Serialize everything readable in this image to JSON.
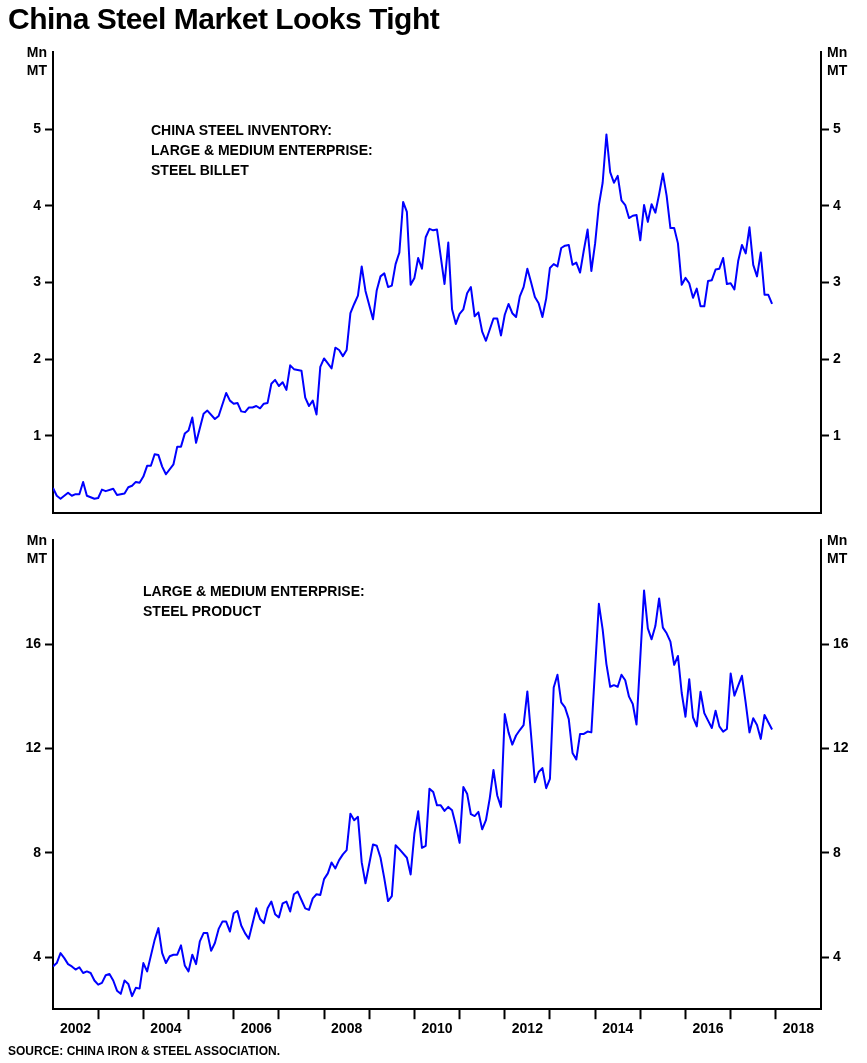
{
  "chart_data": [
    {
      "type": "line",
      "title": "China Steel Market Looks Tight",
      "ylabel": "Mn MT",
      "y2label": "Mn MT",
      "annotations": [
        "CHINA STEEL INVENTORY:\nLARGE & MEDIUM ENTERPRISE:\nSTEEL BILLET"
      ],
      "xlim": [
        "2002-01",
        "2019-01"
      ],
      "ylim": [
        0,
        6
      ],
      "yticks": [
        1,
        2,
        3,
        4,
        5
      ],
      "y2lim": [
        0,
        6
      ],
      "y2ticks": [
        1,
        2,
        3,
        4,
        5
      ],
      "tick_labels": "y",
      "grid": false,
      "legend": false,
      "marker": "none",
      "line_style": "solid",
      "series": [
        {
          "color": "#0000ff",
          "x": [
            "2002-01",
            "2002-02",
            "2002-03",
            "2002-05",
            "2002-06",
            "2002-07",
            "2002-08",
            "2002-09",
            "2002-10",
            "2002-12",
            "2003-01",
            "2003-02",
            "2003-03",
            "2003-05",
            "2003-06",
            "2003-08",
            "2003-09",
            "2003-10",
            "2003-11",
            "2003-12",
            "2004-01",
            "2004-02",
            "2004-03",
            "2004-04",
            "2004-05",
            "2004-06",
            "2004-07",
            "2004-09",
            "2004-10",
            "2004-11",
            "2004-12",
            "2005-01",
            "2005-02",
            "2005-03",
            "2005-05",
            "2005-06",
            "2005-08",
            "2005-09",
            "2005-11",
            "2005-12",
            "2006-01",
            "2006-02",
            "2006-03",
            "2006-04",
            "2006-05",
            "2006-06",
            "2006-07",
            "2006-08",
            "2006-09",
            "2006-10",
            "2006-11",
            "2006-12",
            "2007-01",
            "2007-02",
            "2007-03",
            "2007-04",
            "2007-05",
            "2007-07",
            "2007-08",
            "2007-09",
            "2007-10",
            "2007-11",
            "2007-12",
            "2008-01",
            "2008-03",
            "2008-04",
            "2008-05",
            "2008-06",
            "2008-07",
            "2008-08",
            "2008-09",
            "2008-10",
            "2008-11",
            "2008-12",
            "2009-02",
            "2009-03",
            "2009-04",
            "2009-05",
            "2009-06",
            "2009-07",
            "2009-08",
            "2009-09",
            "2009-10",
            "2009-11",
            "2009-12",
            "2010-01",
            "2010-02",
            "2010-03",
            "2010-04",
            "2010-05",
            "2010-06",
            "2010-07",
            "2010-09",
            "2010-10",
            "2010-11",
            "2010-12",
            "2011-01",
            "2011-02",
            "2011-03",
            "2011-04",
            "2011-05",
            "2011-06",
            "2011-07",
            "2011-08",
            "2011-10",
            "2011-11",
            "2011-12",
            "2012-01",
            "2012-02",
            "2012-03",
            "2012-04",
            "2012-05",
            "2012-06",
            "2012-07",
            "2012-08",
            "2012-09",
            "2012-10",
            "2012-11",
            "2012-12",
            "2013-01",
            "2013-02",
            "2013-03",
            "2013-04",
            "2013-05",
            "2013-06",
            "2013-07",
            "2013-08",
            "2013-09",
            "2013-10",
            "2013-11",
            "2013-12",
            "2014-01",
            "2014-02",
            "2014-03",
            "2014-04",
            "2014-05",
            "2014-06",
            "2014-07",
            "2014-08",
            "2014-09",
            "2014-10",
            "2014-11",
            "2014-12",
            "2015-01",
            "2015-02",
            "2015-03",
            "2015-04",
            "2015-05",
            "2015-06",
            "2015-07",
            "2015-08",
            "2015-09",
            "2015-10",
            "2015-11",
            "2015-12",
            "2016-01",
            "2016-02",
            "2016-03",
            "2016-04",
            "2016-05",
            "2016-06",
            "2016-07",
            "2016-08",
            "2016-09",
            "2016-10",
            "2016-11",
            "2016-12",
            "2017-01",
            "2017-02",
            "2017-03",
            "2017-04",
            "2017-05",
            "2017-06",
            "2017-07",
            "2017-08",
            "2017-09",
            "2017-10",
            "2017-11",
            "2017-12"
          ],
          "values": [
            0.32,
            0.22,
            0.18,
            0.26,
            0.22,
            0.24,
            0.24,
            0.4,
            0.22,
            0.18,
            0.19,
            0.3,
            0.28,
            0.31,
            0.23,
            0.25,
            0.33,
            0.35,
            0.4,
            0.39,
            0.47,
            0.61,
            0.61,
            0.76,
            0.75,
            0.6,
            0.5,
            0.63,
            0.86,
            0.86,
            1.03,
            1.07,
            1.24,
            0.91,
            1.29,
            1.33,
            1.22,
            1.26,
            1.56,
            1.46,
            1.42,
            1.43,
            1.32,
            1.31,
            1.37,
            1.37,
            1.39,
            1.36,
            1.42,
            1.43,
            1.68,
            1.73,
            1.65,
            1.7,
            1.6,
            1.92,
            1.87,
            1.85,
            1.5,
            1.39,
            1.46,
            1.28,
            1.9,
            2.01,
            1.88,
            2.15,
            2.12,
            2.04,
            2.12,
            2.6,
            2.72,
            2.83,
            3.21,
            2.89,
            2.52,
            2.9,
            3.08,
            3.12,
            2.94,
            2.96,
            3.24,
            3.39,
            4.05,
            3.92,
            2.97,
            3.06,
            3.32,
            3.18,
            3.59,
            3.7,
            3.68,
            3.69,
            2.98,
            3.52,
            2.65,
            2.46,
            2.59,
            2.65,
            2.86,
            2.94,
            2.56,
            2.61,
            2.36,
            2.24,
            2.53,
            2.53,
            2.31,
            2.58,
            2.72,
            2.6,
            2.55,
            2.82,
            2.94,
            3.18,
            3.0,
            2.81,
            2.73,
            2.55,
            2.79,
            3.19,
            3.24,
            3.21,
            3.45,
            3.48,
            3.49,
            3.23,
            3.26,
            3.13,
            3.42,
            3.69,
            3.15,
            3.51,
            4.01,
            4.3,
            4.93,
            4.44,
            4.3,
            4.39,
            4.07,
            4.01,
            3.84,
            3.87,
            3.88,
            3.55,
            4.01,
            3.79,
            4.02,
            3.91,
            4.15,
            4.42,
            4.13,
            3.71,
            3.71,
            3.51,
            2.97,
            3.06,
            2.99,
            2.8,
            2.92,
            2.69,
            2.69,
            3.02,
            3.03,
            3.17,
            3.18,
            3.32,
            2.98,
            2.99,
            2.91,
            3.28,
            3.49,
            3.38,
            3.72,
            3.23,
            3.08,
            3.39,
            2.84,
            2.84,
            2.72
          ]
        }
      ]
    },
    {
      "type": "line",
      "ylabel": "Mn MT",
      "y2label": "Mn MT",
      "annotations": [
        "LARGE & MEDIUM ENTERPRISE:\nSTEEL PRODUCT",
        "SOURCE: CHINA IRON & STEEL ASSOCIATION."
      ],
      "xlim": [
        "2002-01",
        "2019-01"
      ],
      "xticks": [
        {
          "value": "2002-07",
          "label": "2002"
        },
        {
          "value": "2003-01",
          "label": null
        },
        {
          "value": "2004-01",
          "label": null
        },
        {
          "value": "2004-07",
          "label": "2004"
        },
        {
          "value": "2005-01",
          "label": null
        },
        {
          "value": "2006-01",
          "label": null
        },
        {
          "value": "2006-07",
          "label": "2006"
        },
        {
          "value": "2007-01",
          "label": null
        },
        {
          "value": "2008-01",
          "label": null
        },
        {
          "value": "2008-07",
          "label": "2008"
        },
        {
          "value": "2009-01",
          "label": null
        },
        {
          "value": "2010-01",
          "label": null
        },
        {
          "value": "2010-07",
          "label": "2010"
        },
        {
          "value": "2011-01",
          "label": null
        },
        {
          "value": "2012-01",
          "label": null
        },
        {
          "value": "2012-07",
          "label": "2012"
        },
        {
          "value": "2013-01",
          "label": null
        },
        {
          "value": "2014-01",
          "label": null
        },
        {
          "value": "2014-07",
          "label": "2014"
        },
        {
          "value": "2015-01",
          "label": null
        },
        {
          "value": "2016-01",
          "label": null
        },
        {
          "value": "2016-07",
          "label": "2016"
        },
        {
          "value": "2017-01",
          "label": null
        },
        {
          "value": "2018-01",
          "label": null
        },
        {
          "value": "2018-07",
          "label": "2018"
        }
      ],
      "ylim": [
        2,
        20
      ],
      "yticks": [
        4,
        8,
        12,
        16
      ],
      "y2lim": [
        2,
        20
      ],
      "y2ticks": [
        4,
        8,
        12,
        16
      ],
      "grid": false,
      "legend": false,
      "marker": "none",
      "line_style": "solid",
      "series": [
        {
          "color": "#0000ff",
          "x": [
            "2002-01",
            "2002-02",
            "2002-03",
            "2002-04",
            "2002-05",
            "2002-06",
            "2002-07",
            "2002-08",
            "2002-09",
            "2002-10",
            "2002-11",
            "2002-12",
            "2003-01",
            "2003-02",
            "2003-03",
            "2003-04",
            "2003-05",
            "2003-06",
            "2003-07",
            "2003-08",
            "2003-09",
            "2003-10",
            "2003-11",
            "2003-12",
            "2004-01",
            "2004-02",
            "2004-04",
            "2004-05",
            "2004-06",
            "2004-07",
            "2004-08",
            "2004-09",
            "2004-10",
            "2004-11",
            "2004-12",
            "2005-01",
            "2005-02",
            "2005-03",
            "2005-04",
            "2005-05",
            "2005-06",
            "2005-07",
            "2005-08",
            "2005-09",
            "2005-10",
            "2005-11",
            "2005-12",
            "2006-01",
            "2006-02",
            "2006-03",
            "2006-04",
            "2006-05",
            "2006-07",
            "2006-08",
            "2006-09",
            "2006-10",
            "2006-11",
            "2006-12",
            "2007-01",
            "2007-02",
            "2007-03",
            "2007-04",
            "2007-05",
            "2007-06",
            "2007-07",
            "2007-08",
            "2007-09",
            "2007-10",
            "2007-11",
            "2007-12",
            "2008-01",
            "2008-02",
            "2008-03",
            "2008-04",
            "2008-05",
            "2008-06",
            "2008-07",
            "2008-08",
            "2008-09",
            "2008-10",
            "2008-11",
            "2008-12",
            "2009-02",
            "2009-03",
            "2009-04",
            "2009-05",
            "2009-06",
            "2009-07",
            "2009-08",
            "2009-09",
            "2009-11",
            "2009-12",
            "2010-01",
            "2010-02",
            "2010-03",
            "2010-04",
            "2010-05",
            "2010-06",
            "2010-07",
            "2010-08",
            "2010-09",
            "2010-10",
            "2010-11",
            "2010-12",
            "2011-01",
            "2011-02",
            "2011-03",
            "2011-04",
            "2011-05",
            "2011-06",
            "2011-07",
            "2011-08",
            "2011-09",
            "2011-10",
            "2011-11",
            "2011-12",
            "2012-01",
            "2012-02",
            "2012-03",
            "2012-04",
            "2012-05",
            "2012-06",
            "2012-07",
            "2012-08",
            "2012-09",
            "2012-10",
            "2012-11",
            "2012-12",
            "2013-01",
            "2013-02",
            "2013-03",
            "2013-04",
            "2013-05",
            "2013-06",
            "2013-07",
            "2013-08",
            "2013-09",
            "2013-10",
            "2013-11",
            "2013-12",
            "2014-02",
            "2014-03",
            "2014-04",
            "2014-05",
            "2014-06",
            "2014-07",
            "2014-08",
            "2014-09",
            "2014-10",
            "2014-11",
            "2014-12",
            "2015-02",
            "2015-03",
            "2015-04",
            "2015-05",
            "2015-06",
            "2015-07",
            "2015-08",
            "2015-09",
            "2015-10",
            "2015-11",
            "2015-12",
            "2016-01",
            "2016-02",
            "2016-03",
            "2016-04",
            "2016-05",
            "2016-06",
            "2016-07",
            "2016-08",
            "2016-09",
            "2016-10",
            "2016-11",
            "2016-12",
            "2017-01",
            "2017-02",
            "2017-03",
            "2017-04",
            "2017-05",
            "2017-06",
            "2017-07",
            "2017-08",
            "2017-09",
            "2017-10",
            "2017-11",
            "2017-12"
          ],
          "values": [
            3.64,
            3.77,
            4.15,
            3.96,
            3.73,
            3.64,
            3.52,
            3.61,
            3.39,
            3.45,
            3.39,
            3.1,
            2.94,
            3.01,
            3.3,
            3.35,
            3.1,
            2.71,
            2.59,
            3.1,
            2.97,
            2.5,
            2.82,
            2.79,
            3.77,
            3.45,
            4.66,
            5.11,
            4.15,
            3.77,
            4.03,
            4.09,
            4.09,
            4.45,
            3.68,
            3.45,
            4.09,
            3.73,
            4.6,
            4.92,
            4.92,
            4.24,
            4.54,
            5.08,
            5.36,
            5.36,
            4.98,
            5.68,
            5.77,
            5.21,
            4.92,
            4.7,
            5.87,
            5.46,
            5.3,
            5.87,
            6.13,
            5.64,
            5.52,
            6.06,
            6.13,
            5.75,
            6.41,
            6.51,
            6.19,
            5.87,
            5.81,
            6.25,
            6.41,
            6.38,
            6.99,
            7.21,
            7.63,
            7.4,
            7.72,
            7.94,
            8.1,
            9.5,
            9.25,
            9.38,
            7.63,
            6.83,
            8.32,
            8.27,
            7.81,
            7.02,
            6.15,
            6.34,
            8.29,
            8.14,
            7.81,
            7.17,
            8.74,
            9.59,
            8.19,
            8.27,
            10.46,
            10.33,
            9.82,
            9.82,
            9.61,
            9.76,
            9.63,
            9.06,
            8.38,
            10.52,
            10.27,
            9.48,
            9.41,
            9.57,
            8.9,
            9.25,
            10.08,
            11.18,
            10.2,
            9.76,
            13.32,
            12.62,
            12.15,
            12.5,
            12.71,
            12.9,
            14.19,
            12.5,
            10.71,
            11.1,
            11.25,
            10.48,
            10.84,
            14.34,
            14.83,
            13.77,
            13.58,
            13.13,
            11.83,
            11.58,
            12.56,
            12.56,
            12.65,
            12.62,
            17.55,
            16.57,
            15.24,
            14.37,
            14.43,
            14.37,
            14.83,
            14.62,
            13.99,
            13.71,
            12.92,
            18.06,
            16.61,
            16.19,
            16.7,
            17.76,
            16.64,
            16.42,
            16.1,
            15.21,
            15.55,
            14.13,
            13.22,
            14.66,
            13.2,
            12.85,
            14.18,
            13.36,
            13.07,
            12.79,
            13.45,
            12.85,
            12.65,
            12.75,
            14.88,
            14.03,
            14.41,
            14.79,
            13.75,
            12.62,
            13.16,
            12.9,
            12.37,
            13.29,
            13.01,
            12.73
          ]
        }
      ]
    }
  ]
}
